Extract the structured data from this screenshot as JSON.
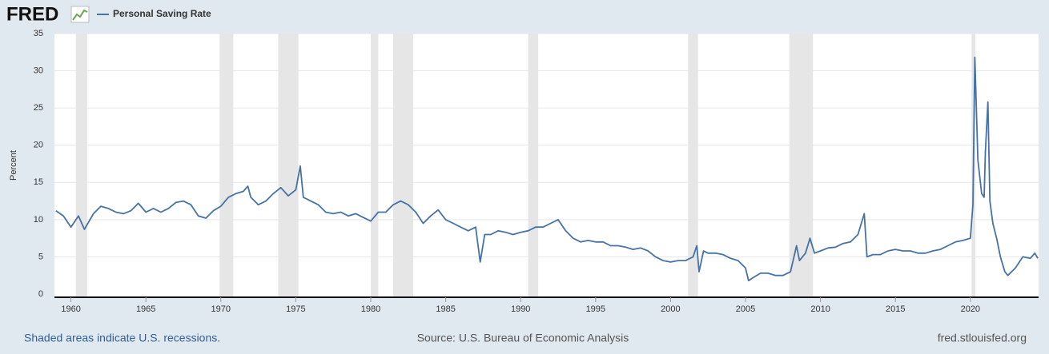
{
  "chart_data": {
    "type": "line",
    "brand": "FRED",
    "ylabel": "Percent",
    "note": "Shaded areas indicate U.S. recessions.",
    "source": "Source: U.S. Bureau of Economic Analysis",
    "site": "fred.stlouisfed.org",
    "xlim": [
      1958.9,
      2024.55
    ],
    "ylim": [
      0,
      35
    ],
    "xticks": [
      1960,
      1965,
      1970,
      1975,
      1980,
      1985,
      1990,
      1995,
      2000,
      2005,
      2010,
      2015,
      2020
    ],
    "yticks": [
      0,
      5,
      10,
      15,
      20,
      25,
      30,
      35
    ],
    "grid": true,
    "recession_color": "#e6e6e6",
    "recessions": [
      [
        1960.33,
        1961.08
      ],
      [
        1969.92,
        1970.83
      ],
      [
        1973.83,
        1975.17
      ],
      [
        1980.0,
        1980.5
      ],
      [
        1981.5,
        1982.83
      ],
      [
        1990.5,
        1991.17
      ],
      [
        2001.17,
        2001.83
      ],
      [
        2007.92,
        2009.5
      ],
      [
        2020.08,
        2020.33
      ]
    ],
    "x": [
      1959.0,
      1959.5,
      1960.0,
      1960.5,
      1960.9,
      1961.5,
      1962.0,
      1962.5,
      1963.0,
      1963.5,
      1964.0,
      1964.5,
      1965.0,
      1965.5,
      1966.0,
      1966.5,
      1967.0,
      1967.5,
      1968.0,
      1968.5,
      1969.0,
      1969.5,
      1970.0,
      1970.5,
      1971.0,
      1971.5,
      1971.8,
      1972.0,
      1972.5,
      1973.0,
      1973.5,
      1974.0,
      1974.5,
      1975.0,
      1975.3,
      1975.5,
      1976.0,
      1976.5,
      1977.0,
      1977.5,
      1978.0,
      1978.5,
      1979.0,
      1979.5,
      1980.0,
      1980.5,
      1981.0,
      1981.5,
      1982.0,
      1982.5,
      1983.0,
      1983.5,
      1984.0,
      1984.5,
      1985.0,
      1985.5,
      1986.0,
      1986.5,
      1987.0,
      1987.3,
      1987.6,
      1988.0,
      1988.5,
      1989.0,
      1989.5,
      1990.0,
      1990.5,
      1991.0,
      1991.5,
      1992.0,
      1992.5,
      1993.0,
      1993.5,
      1994.0,
      1994.5,
      1995.0,
      1995.5,
      1996.0,
      1996.5,
      1997.0,
      1997.5,
      1998.0,
      1998.5,
      1999.0,
      1999.5,
      2000.0,
      2000.5,
      2001.0,
      2001.5,
      2001.75,
      2001.9,
      2002.2,
      2002.5,
      2003.0,
      2003.5,
      2004.0,
      2004.5,
      2005.0,
      2005.2,
      2005.5,
      2006.0,
      2006.5,
      2007.0,
      2007.5,
      2008.0,
      2008.4,
      2008.6,
      2009.0,
      2009.3,
      2009.6,
      2010.0,
      2010.5,
      2011.0,
      2011.5,
      2012.0,
      2012.5,
      2012.92,
      2013.1,
      2013.5,
      2014.0,
      2014.5,
      2015.0,
      2015.5,
      2016.0,
      2016.5,
      2017.0,
      2017.5,
      2018.0,
      2018.5,
      2019.0,
      2019.5,
      2020.0,
      2020.17,
      2020.3,
      2020.5,
      2020.75,
      2020.92,
      2021.0,
      2021.17,
      2021.3,
      2021.5,
      2021.75,
      2022.0,
      2022.3,
      2022.5,
      2023.0,
      2023.5,
      2024.0,
      2024.3,
      2024.5
    ],
    "series": [
      {
        "name": "Personal Saving Rate",
        "color": "#4572a7",
        "values": [
          11.2,
          10.5,
          9.0,
          10.5,
          8.7,
          10.8,
          11.8,
          11.5,
          11.0,
          10.8,
          11.2,
          12.2,
          11.0,
          11.5,
          11.0,
          11.5,
          12.3,
          12.5,
          12.0,
          10.5,
          10.2,
          11.2,
          11.8,
          13.0,
          13.5,
          13.8,
          14.5,
          13.0,
          12.0,
          12.5,
          13.5,
          14.3,
          13.2,
          14.0,
          17.2,
          13.0,
          12.5,
          12.0,
          11.0,
          10.8,
          11.0,
          10.5,
          10.8,
          10.3,
          9.8,
          11.0,
          11.0,
          12.0,
          12.5,
          12.0,
          11.0,
          9.5,
          10.5,
          11.3,
          10.0,
          9.5,
          9.0,
          8.5,
          9.0,
          4.3,
          8.0,
          8.0,
          8.5,
          8.3,
          8.0,
          8.3,
          8.5,
          9.0,
          9.0,
          9.5,
          10.0,
          8.5,
          7.5,
          7.0,
          7.2,
          7.0,
          7.0,
          6.5,
          6.5,
          6.3,
          6.0,
          6.2,
          5.8,
          5.0,
          4.5,
          4.3,
          4.5,
          4.5,
          5.0,
          6.5,
          3.0,
          5.8,
          5.5,
          5.5,
          5.3,
          4.8,
          4.5,
          3.5,
          1.8,
          2.2,
          2.8,
          2.8,
          2.5,
          2.5,
          3.0,
          6.5,
          4.5,
          5.5,
          7.5,
          5.5,
          5.8,
          6.2,
          6.3,
          6.8,
          7.0,
          8.0,
          10.8,
          5.0,
          5.3,
          5.3,
          5.8,
          6.0,
          5.8,
          5.8,
          5.5,
          5.5,
          5.8,
          6.0,
          6.5,
          7.0,
          7.2,
          7.5,
          12.0,
          31.8,
          18.0,
          13.5,
          13.0,
          19.0,
          25.8,
          12.5,
          9.5,
          7.5,
          5.0,
          3.0,
          2.5,
          3.5,
          5.0,
          4.8,
          5.5,
          4.8
        ]
      }
    ]
  }
}
